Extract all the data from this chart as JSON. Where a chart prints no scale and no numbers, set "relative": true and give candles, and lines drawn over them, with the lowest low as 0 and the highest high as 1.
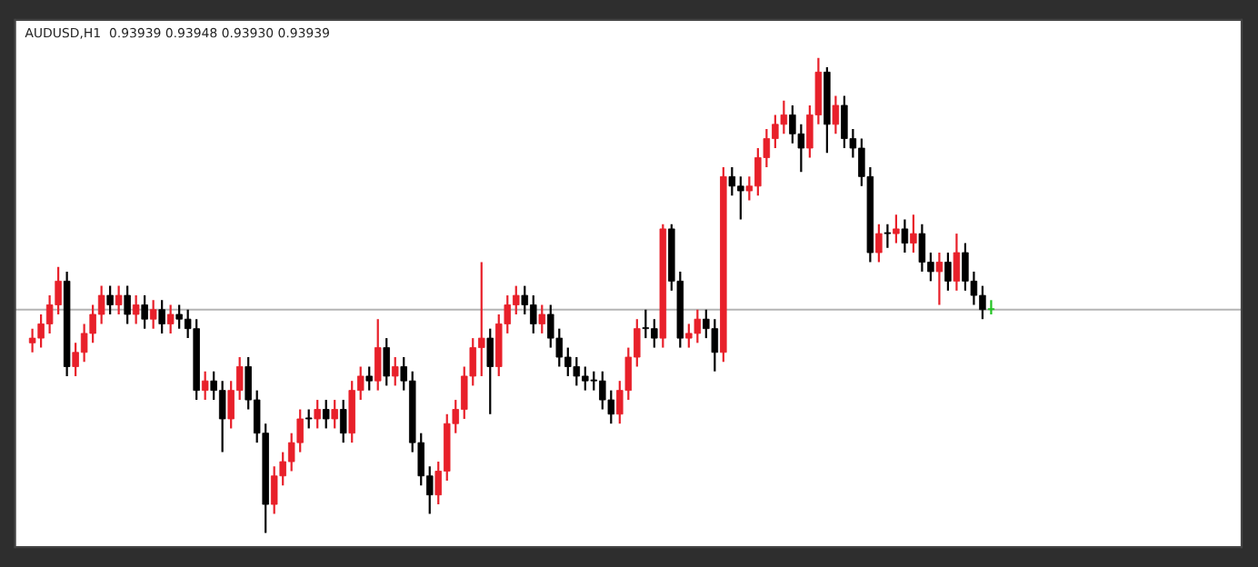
{
  "chart_data": {
    "type": "candlestick",
    "title": "AUDUSD,H1  0.93939 0.93948 0.93930 0.93939",
    "relative": true,
    "categories": [
      null,
      null,
      null,
      null,
      null,
      null,
      null,
      null,
      null,
      null,
      null,
      null,
      null,
      null,
      null,
      null,
      null,
      null,
      null,
      null,
      null,
      null,
      null,
      null,
      null,
      null,
      null,
      null,
      null,
      null,
      null,
      null,
      null,
      null,
      null,
      null,
      null,
      null,
      null,
      null,
      null,
      null,
      null,
      null,
      null,
      null,
      null,
      null,
      null,
      null,
      null,
      null,
      null,
      null,
      null,
      null,
      null,
      null,
      null,
      null,
      null,
      null,
      null,
      null,
      null,
      null,
      null,
      null,
      null,
      null,
      null,
      null,
      null,
      null,
      null,
      null,
      null,
      null,
      null,
      null,
      null,
      null,
      null,
      null,
      null,
      null,
      null,
      null,
      null,
      null,
      null,
      null,
      null,
      null,
      null,
      null,
      null,
      null,
      null,
      null,
      null,
      null,
      null,
      null,
      null,
      null,
      null,
      null,
      null,
      null,
      null,
      null
    ],
    "ohlc": [
      [
        0.4,
        0.43,
        0.38,
        0.41
      ],
      [
        0.41,
        0.46,
        0.39,
        0.44
      ],
      [
        0.44,
        0.5,
        0.42,
        0.48
      ],
      [
        0.48,
        0.56,
        0.46,
        0.53
      ],
      [
        0.53,
        0.55,
        0.33,
        0.35
      ],
      [
        0.35,
        0.4,
        0.33,
        0.38
      ],
      [
        0.38,
        0.44,
        0.36,
        0.42
      ],
      [
        0.42,
        0.48,
        0.4,
        0.46
      ],
      [
        0.46,
        0.52,
        0.44,
        0.5
      ],
      [
        0.5,
        0.52,
        0.46,
        0.48
      ],
      [
        0.48,
        0.52,
        0.46,
        0.5
      ],
      [
        0.5,
        0.52,
        0.44,
        0.46
      ],
      [
        0.46,
        0.5,
        0.44,
        0.48
      ],
      [
        0.48,
        0.5,
        0.43,
        0.45
      ],
      [
        0.45,
        0.49,
        0.43,
        0.47
      ],
      [
        0.47,
        0.49,
        0.42,
        0.44
      ],
      [
        0.44,
        0.48,
        0.42,
        0.46
      ],
      [
        0.46,
        0.48,
        0.43,
        0.45
      ],
      [
        0.45,
        0.47,
        0.41,
        0.43
      ],
      [
        0.43,
        0.45,
        0.28,
        0.3
      ],
      [
        0.3,
        0.34,
        0.28,
        0.32
      ],
      [
        0.32,
        0.34,
        0.28,
        0.3
      ],
      [
        0.3,
        0.32,
        0.17,
        0.24
      ],
      [
        0.24,
        0.32,
        0.22,
        0.3
      ],
      [
        0.3,
        0.37,
        0.28,
        0.35
      ],
      [
        0.35,
        0.37,
        0.26,
        0.28
      ],
      [
        0.28,
        0.3,
        0.19,
        0.21
      ],
      [
        0.21,
        0.23,
        0.0,
        0.06
      ],
      [
        0.06,
        0.14,
        0.04,
        0.12
      ],
      [
        0.12,
        0.17,
        0.1,
        0.15
      ],
      [
        0.15,
        0.21,
        0.13,
        0.19
      ],
      [
        0.19,
        0.26,
        0.17,
        0.24
      ],
      [
        0.24,
        0.26,
        0.22,
        0.24
      ],
      [
        0.24,
        0.28,
        0.22,
        0.26
      ],
      [
        0.26,
        0.28,
        0.22,
        0.24
      ],
      [
        0.24,
        0.28,
        0.22,
        0.26
      ],
      [
        0.26,
        0.28,
        0.19,
        0.21
      ],
      [
        0.21,
        0.32,
        0.19,
        0.3
      ],
      [
        0.3,
        0.35,
        0.28,
        0.33
      ],
      [
        0.33,
        0.35,
        0.3,
        0.32
      ],
      [
        0.32,
        0.45,
        0.3,
        0.39
      ],
      [
        0.39,
        0.41,
        0.31,
        0.33
      ],
      [
        0.33,
        0.37,
        0.31,
        0.35
      ],
      [
        0.35,
        0.37,
        0.3,
        0.32
      ],
      [
        0.32,
        0.34,
        0.17,
        0.19
      ],
      [
        0.19,
        0.21,
        0.1,
        0.12
      ],
      [
        0.12,
        0.14,
        0.04,
        0.08
      ],
      [
        0.08,
        0.15,
        0.06,
        0.13
      ],
      [
        0.13,
        0.25,
        0.11,
        0.23
      ],
      [
        0.23,
        0.28,
        0.21,
        0.26
      ],
      [
        0.26,
        0.35,
        0.24,
        0.33
      ],
      [
        0.33,
        0.41,
        0.31,
        0.39
      ],
      [
        0.39,
        0.57,
        0.33,
        0.41
      ],
      [
        0.41,
        0.43,
        0.25,
        0.35
      ],
      [
        0.35,
        0.46,
        0.33,
        0.44
      ],
      [
        0.44,
        0.5,
        0.42,
        0.48
      ],
      [
        0.48,
        0.52,
        0.46,
        0.5
      ],
      [
        0.5,
        0.52,
        0.46,
        0.48
      ],
      [
        0.48,
        0.5,
        0.42,
        0.44
      ],
      [
        0.44,
        0.48,
        0.42,
        0.46
      ],
      [
        0.46,
        0.48,
        0.39,
        0.41
      ],
      [
        0.41,
        0.43,
        0.35,
        0.37
      ],
      [
        0.37,
        0.39,
        0.33,
        0.35
      ],
      [
        0.35,
        0.37,
        0.31,
        0.33
      ],
      [
        0.33,
        0.35,
        0.3,
        0.32
      ],
      [
        0.32,
        0.34,
        0.3,
        0.32
      ],
      [
        0.32,
        0.34,
        0.26,
        0.28
      ],
      [
        0.28,
        0.3,
        0.23,
        0.25
      ],
      [
        0.25,
        0.32,
        0.23,
        0.3
      ],
      [
        0.3,
        0.39,
        0.28,
        0.37
      ],
      [
        0.37,
        0.45,
        0.35,
        0.43
      ],
      [
        0.43,
        0.47,
        0.41,
        0.43
      ],
      [
        0.43,
        0.45,
        0.39,
        0.41
      ],
      [
        0.41,
        0.65,
        0.39,
        0.64
      ],
      [
        0.64,
        0.65,
        0.51,
        0.53
      ],
      [
        0.53,
        0.55,
        0.39,
        0.41
      ],
      [
        0.41,
        0.44,
        0.39,
        0.42
      ],
      [
        0.42,
        0.47,
        0.4,
        0.45
      ],
      [
        0.45,
        0.47,
        0.41,
        0.43
      ],
      [
        0.43,
        0.45,
        0.34,
        0.38
      ],
      [
        0.38,
        0.77,
        0.36,
        0.75
      ],
      [
        0.75,
        0.77,
        0.71,
        0.73
      ],
      [
        0.73,
        0.75,
        0.66,
        0.72
      ],
      [
        0.72,
        0.75,
        0.7,
        0.73
      ],
      [
        0.73,
        0.81,
        0.71,
        0.79
      ],
      [
        0.79,
        0.85,
        0.77,
        0.83
      ],
      [
        0.83,
        0.88,
        0.81,
        0.86
      ],
      [
        0.86,
        0.91,
        0.84,
        0.88
      ],
      [
        0.88,
        0.9,
        0.82,
        0.84
      ],
      [
        0.84,
        0.86,
        0.76,
        0.81
      ],
      [
        0.81,
        0.9,
        0.79,
        0.88
      ],
      [
        0.88,
        1.0,
        0.86,
        0.97
      ],
      [
        0.97,
        0.98,
        0.8,
        0.86
      ],
      [
        0.86,
        0.92,
        0.84,
        0.9
      ],
      [
        0.9,
        0.92,
        0.81,
        0.83
      ],
      [
        0.83,
        0.85,
        0.79,
        0.81
      ],
      [
        0.81,
        0.83,
        0.73,
        0.75
      ],
      [
        0.75,
        0.77,
        0.57,
        0.59
      ],
      [
        0.59,
        0.65,
        0.57,
        0.63
      ],
      [
        0.63,
        0.65,
        0.6,
        0.63
      ],
      [
        0.63,
        0.67,
        0.61,
        0.64
      ],
      [
        0.64,
        0.66,
        0.59,
        0.61
      ],
      [
        0.61,
        0.67,
        0.59,
        0.63
      ],
      [
        0.63,
        0.65,
        0.55,
        0.57
      ],
      [
        0.57,
        0.59,
        0.53,
        0.55
      ],
      [
        0.55,
        0.59,
        0.48,
        0.57
      ],
      [
        0.57,
        0.59,
        0.51,
        0.53
      ],
      [
        0.53,
        0.63,
        0.51,
        0.59
      ],
      [
        0.59,
        0.61,
        0.51,
        0.53
      ],
      [
        0.53,
        0.55,
        0.48,
        0.5
      ],
      [
        0.5,
        0.52,
        0.45,
        0.47
      ],
      [
        0.47,
        0.49,
        0.46,
        0.47
      ]
    ],
    "colors": [
      "#e8202a",
      "#e8202a",
      "#e8202a",
      "#e8202a",
      "#000000",
      "#e8202a",
      "#e8202a",
      "#e8202a",
      "#e8202a",
      "#000000",
      "#e8202a",
      "#000000",
      "#e8202a",
      "#000000",
      "#e8202a",
      "#000000",
      "#e8202a",
      "#000000",
      "#000000",
      "#000000",
      "#e8202a",
      "#000000",
      "#000000",
      "#e8202a",
      "#e8202a",
      "#000000",
      "#000000",
      "#000000",
      "#e8202a",
      "#e8202a",
      "#e8202a",
      "#e8202a",
      "#000000",
      "#e8202a",
      "#000000",
      "#e8202a",
      "#000000",
      "#e8202a",
      "#e8202a",
      "#000000",
      "#e8202a",
      "#000000",
      "#e8202a",
      "#000000",
      "#000000",
      "#000000",
      "#000000",
      "#e8202a",
      "#e8202a",
      "#e8202a",
      "#e8202a",
      "#e8202a",
      "#e8202a",
      "#000000",
      "#e8202a",
      "#e8202a",
      "#e8202a",
      "#000000",
      "#000000",
      "#e8202a",
      "#000000",
      "#000000",
      "#000000",
      "#000000",
      "#000000",
      "#000000",
      "#000000",
      "#000000",
      "#e8202a",
      "#e8202a",
      "#e8202a",
      "#000000",
      "#000000",
      "#e8202a",
      "#000000",
      "#000000",
      "#e8202a",
      "#e8202a",
      "#000000",
      "#000000",
      "#e8202a",
      "#000000",
      "#000000",
      "#e8202a",
      "#e8202a",
      "#e8202a",
      "#e8202a",
      "#e8202a",
      "#000000",
      "#000000",
      "#e8202a",
      "#e8202a",
      "#000000",
      "#e8202a",
      "#000000",
      "#000000",
      "#000000",
      "#000000",
      "#e8202a",
      "#000000",
      "#e8202a",
      "#000000",
      "#e8202a",
      "#000000",
      "#000000",
      "#e8202a",
      "#000000",
      "#e8202a",
      "#000000",
      "#000000",
      "#000000",
      "#22c322"
    ],
    "ref_lines": [
      {
        "axis": "y",
        "value": 0.47,
        "label": null,
        "color": "#b4b4b4",
        "line_style": "solid"
      }
    ]
  }
}
